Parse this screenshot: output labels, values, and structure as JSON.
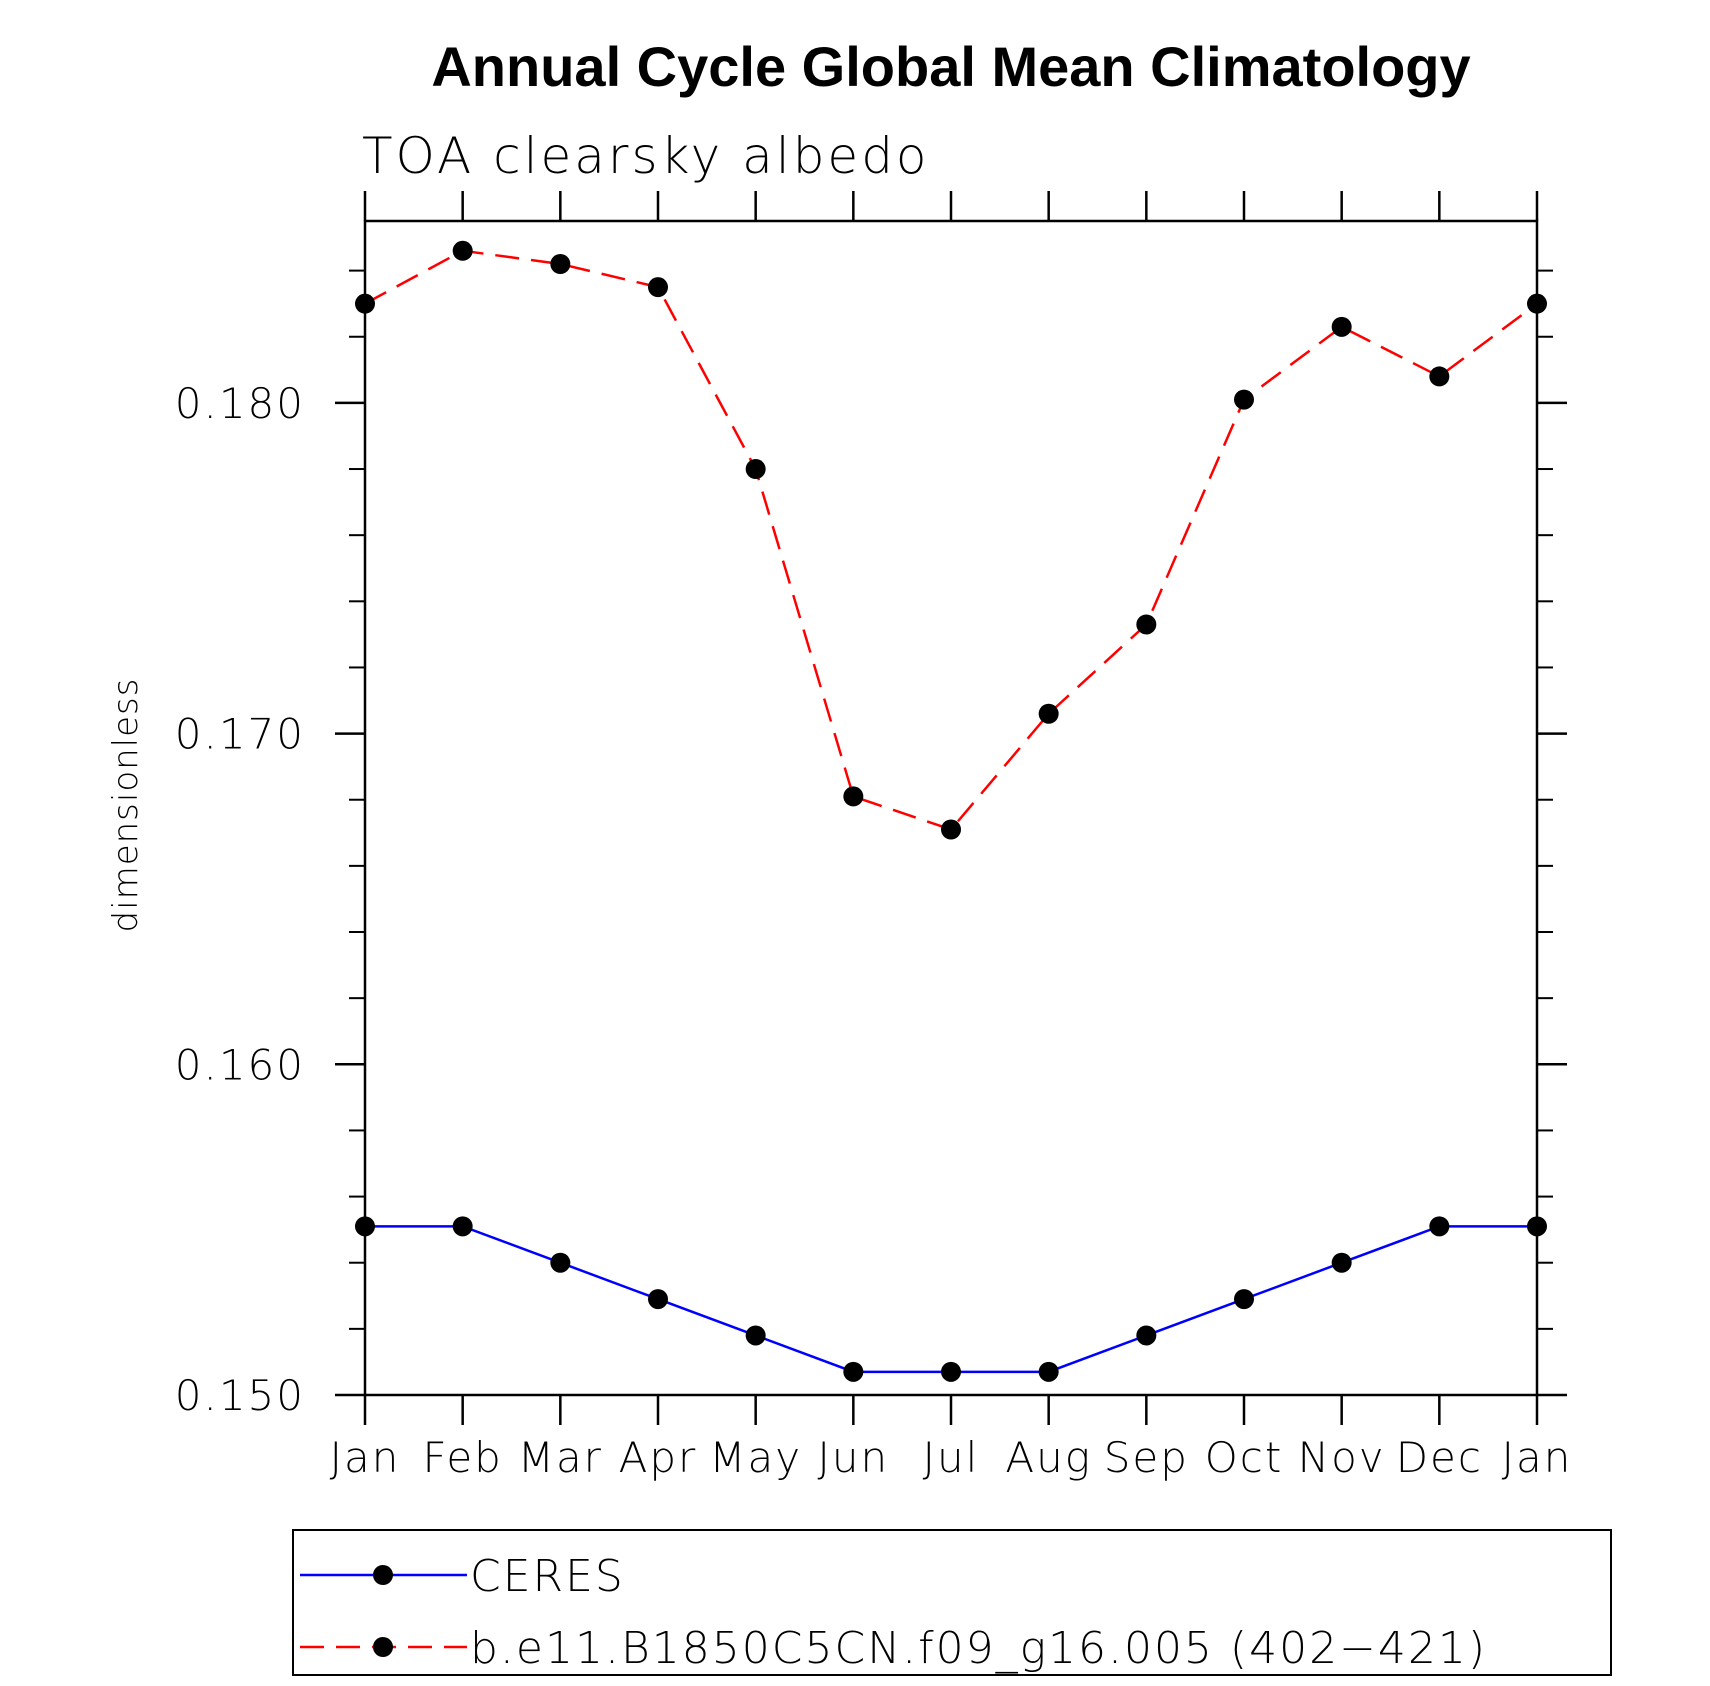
{
  "chart_data": {
    "type": "line",
    "title": "Annual Cycle Global Mean Climatology",
    "subtitle": "TOA clearsky albedo",
    "xlabel": "",
    "ylabel": "dimensionless",
    "ylim": [
      0.15,
      0.1855
    ],
    "yticks": [
      0.15,
      0.16,
      0.17,
      0.18
    ],
    "ytick_labels": [
      "0.150",
      "0.160",
      "0.170",
      "0.180"
    ],
    "yminor_step": 0.002,
    "categories": [
      "Jan",
      "Feb",
      "Mar",
      "Apr",
      "May",
      "Jun",
      "Jul",
      "Aug",
      "Sep",
      "Oct",
      "Nov",
      "Dec",
      "Jan"
    ],
    "series": [
      {
        "name": "CERES",
        "color": "#0000ff",
        "dash": "solid",
        "values": [
          0.1551,
          0.1551,
          0.154,
          0.1529,
          0.1518,
          0.1507,
          0.1507,
          0.1507,
          0.1518,
          0.1529,
          0.154,
          0.1551,
          0.1551
        ]
      },
      {
        "name": "b.e11.B1850C5CN.f09_g16.005 (402−421)",
        "color": "#ff0000",
        "dash": "dashed",
        "values": [
          0.183,
          0.1846,
          0.1842,
          0.1835,
          0.178,
          0.1681,
          0.1671,
          0.1706,
          0.1733,
          0.1801,
          0.1823,
          0.1808,
          0.183
        ]
      }
    ],
    "marker_color": "#000000",
    "legend_position": "bottom"
  }
}
